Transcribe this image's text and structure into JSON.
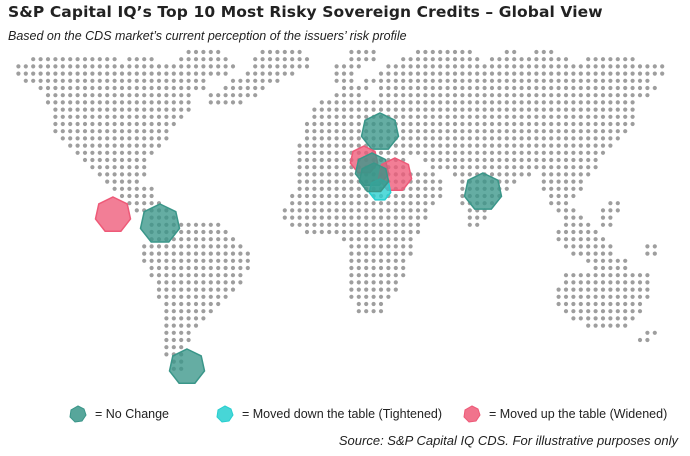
{
  "title": "S&P Capital IQ’s Top 10 Most Risky Sovereign Credits – Global View",
  "subtitle": "Based on the CDS market’s current perception of the issuers’ risk profile",
  "colors": {
    "dot": "#9e9e9e",
    "no_change": "#3a9689",
    "tightened": "#27cfd0",
    "widened": "#ee5a78"
  },
  "markers": [
    {
      "status": "no_change",
      "region": "Ukraine"
    },
    {
      "status": "widened",
      "region": "Italy"
    },
    {
      "status": "no_change",
      "region": "Greece"
    },
    {
      "status": "widened",
      "region": "Turkey"
    },
    {
      "status": "tightened",
      "region": "Cyprus"
    },
    {
      "status": "no_change",
      "region": "Egypt"
    },
    {
      "status": "no_change",
      "region": "Pakistan"
    },
    {
      "status": "widened",
      "region": "El Salvador"
    },
    {
      "status": "no_change",
      "region": "Venezuela"
    },
    {
      "status": "no_change",
      "region": "Argentina"
    }
  ],
  "legend": {
    "no_change": "= No Change",
    "tightened": "= Moved down the table (Tightened)",
    "widened": "= Moved up the table (Widened)"
  },
  "source": "Source: S&P Capital IQ CDS. For illustrative purposes only"
}
